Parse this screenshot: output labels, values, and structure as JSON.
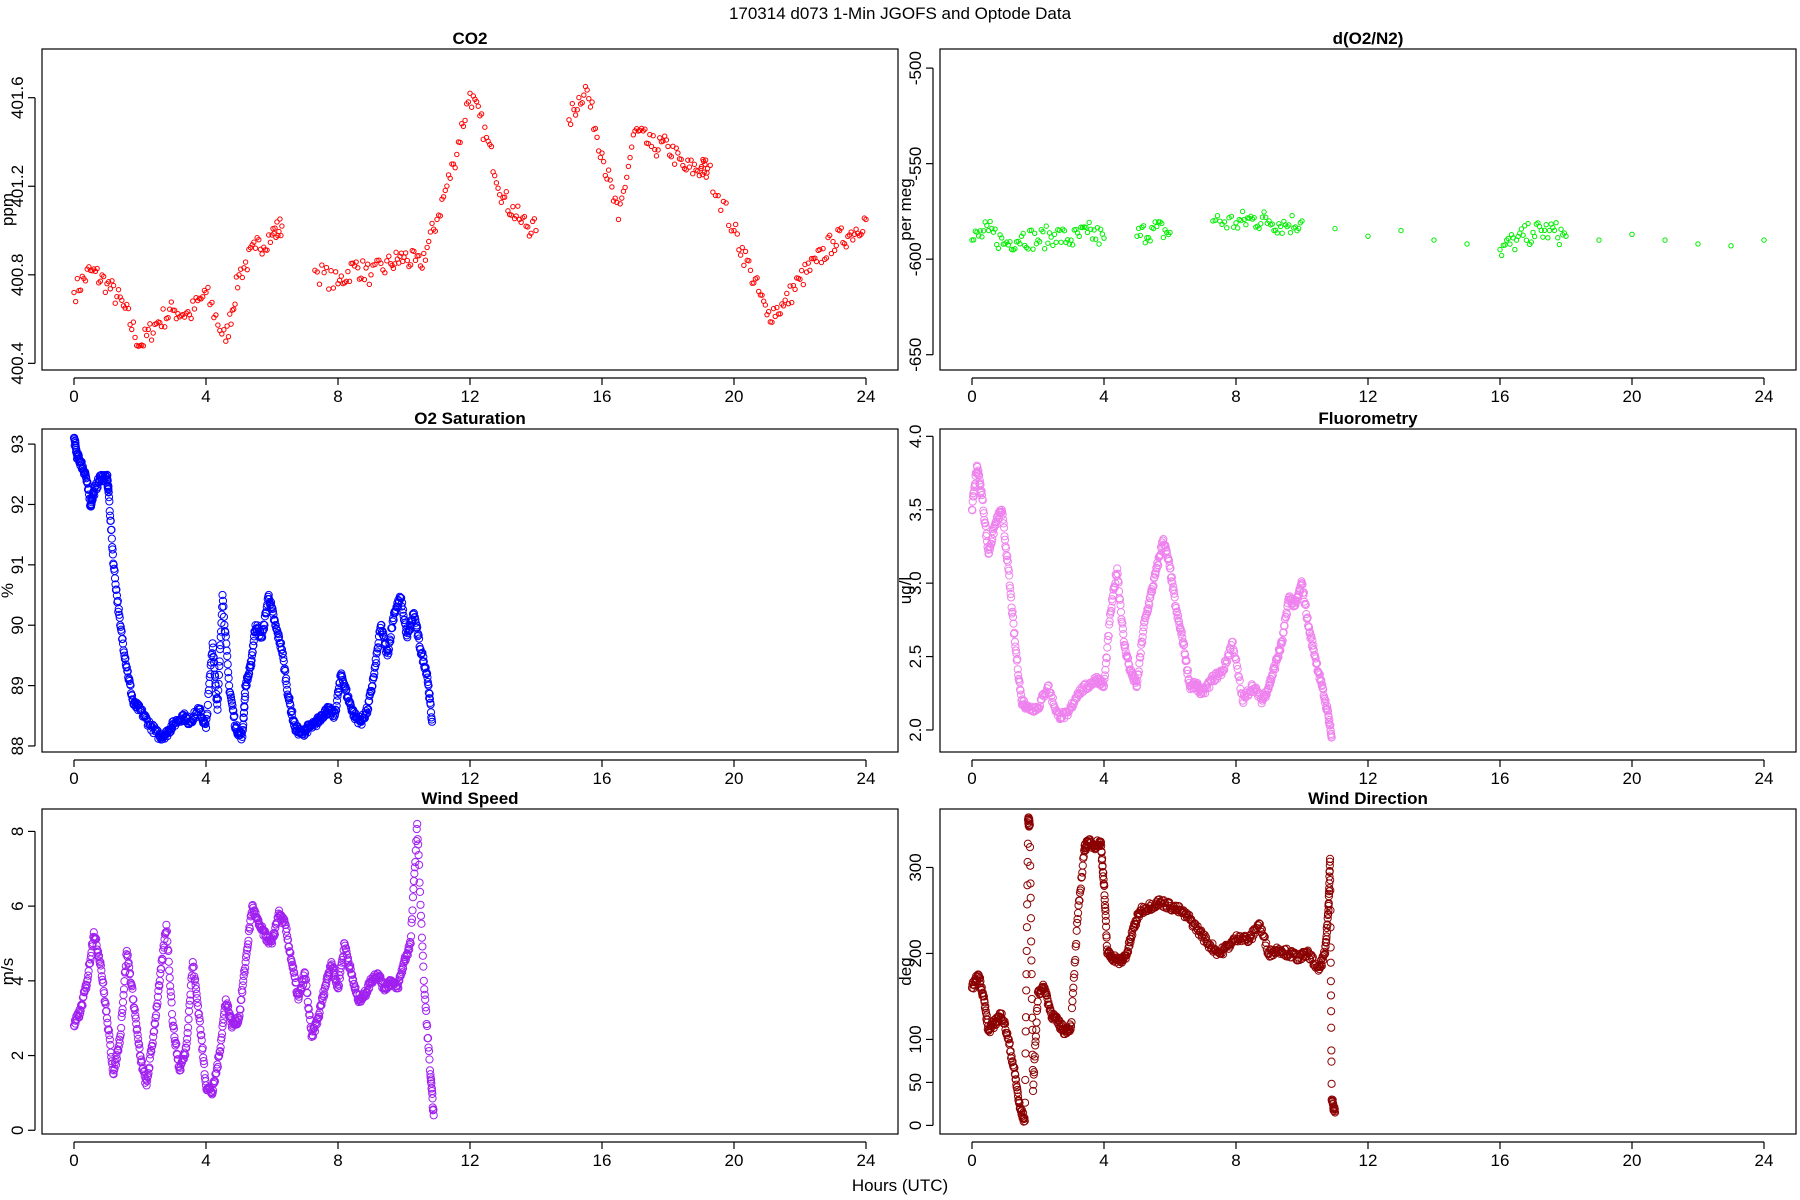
{
  "title": "170314   d073   1-Min  JGOFS and Optode Data",
  "xlabel": "Hours (UTC)",
  "chart_data": [
    {
      "id": "co2",
      "type": "scatter",
      "title": "CO2",
      "ylabel": "ppm",
      "color": "#ff0000",
      "marker_size": "small",
      "xlim": [
        0,
        24
      ],
      "ylim": [
        400.37,
        401.82
      ],
      "xticks": [
        0,
        4,
        8,
        12,
        16,
        20,
        24
      ],
      "xtick_labels": [
        "0",
        "4",
        "8",
        "12",
        "16",
        "20",
        "24"
      ],
      "yticks": [
        400.4,
        400.8,
        401.2,
        401.6
      ],
      "ytick_labels": [
        "400.4",
        "400.8",
        "401.2",
        "401.6"
      ],
      "series": [
        {
          "name": "CO2",
          "x": [
            0.0,
            0.5,
            1.0,
            1.5,
            2.0,
            2.5,
            3.0,
            3.5,
            4.0,
            4.6,
            5.0,
            5.5,
            6.0,
            6.3,
            7.3,
            8.0,
            8.5,
            9.0,
            9.6,
            10.0,
            10.5,
            11.0,
            11.5,
            12.0,
            12.5,
            13.0,
            13.5,
            14.0,
            15.0,
            15.5,
            16.0,
            16.5,
            17.0,
            17.5,
            18.0,
            18.5,
            19.0,
            19.2,
            20.0,
            20.5,
            21.0,
            21.5,
            22.0,
            22.5,
            23.0,
            23.5,
            24.0
          ],
          "y": [
            400.72,
            400.82,
            400.76,
            400.66,
            400.48,
            400.58,
            400.64,
            400.62,
            400.72,
            400.5,
            400.8,
            400.92,
            400.98,
            401.02,
            400.82,
            400.76,
            400.84,
            400.8,
            400.85,
            400.88,
            400.84,
            401.05,
            401.3,
            401.62,
            401.42,
            401.15,
            401.05,
            401.0,
            401.5,
            401.65,
            401.35,
            401.05,
            401.45,
            401.38,
            401.38,
            401.28,
            401.28,
            401.28,
            401.0,
            400.82,
            400.62,
            400.66,
            400.78,
            400.86,
            400.95,
            400.98,
            401.05
          ]
        }
      ]
    },
    {
      "id": "o2n2",
      "type": "scatter",
      "title": "d(O2/N2)",
      "ylabel": "per meg",
      "color": "#00ee00",
      "marker_size": "small",
      "xlim": [
        0,
        24
      ],
      "ylim": [
        -658,
        -490
      ],
      "xticks": [
        0,
        4,
        8,
        12,
        16,
        20,
        24
      ],
      "xtick_labels": [
        "0",
        "4",
        "8",
        "12",
        "16",
        "20",
        "24"
      ],
      "yticks": [
        -650,
        -600,
        -550,
        -500
      ],
      "ytick_labels": [
        "-650",
        "-600",
        "-550",
        "-500"
      ],
      "series": [
        {
          "name": "d(O2/N2)",
          "x": [
            0.0,
            0.5,
            1.0,
            1.5,
            2.0,
            2.5,
            3.0,
            3.5,
            4.0,
            5.0,
            5.5,
            6.0,
            7.3,
            8.0,
            8.5,
            9.0,
            9.5,
            10.0,
            11.0,
            12.0,
            13.0,
            14.0,
            15.0,
            16.0,
            16.5,
            17.0,
            17.5,
            18.0,
            19.0,
            20.0,
            21.0,
            22.0,
            23.0,
            24.0
          ],
          "y": [
            -590,
            -585,
            -592,
            -588,
            -590,
            -587,
            -590,
            -586,
            -589,
            -588,
            -584,
            -586,
            -580,
            -581,
            -579,
            -580,
            -582,
            -580,
            -584,
            -588,
            -585,
            -590,
            -592,
            -595,
            -590,
            -586,
            -585,
            -588,
            -590,
            -587,
            -590,
            -592,
            -593,
            -590
          ]
        }
      ]
    },
    {
      "id": "o2sat",
      "type": "scatter",
      "title": "O2 Saturation",
      "ylabel": "%",
      "color": "#0000ff",
      "marker_size": "large",
      "xlim": [
        0,
        24
      ],
      "ylim": [
        87.9,
        93.25
      ],
      "xticks": [
        0,
        4,
        8,
        12,
        16,
        20,
        24
      ],
      "xtick_labels": [
        "0",
        "4",
        "8",
        "12",
        "16",
        "20",
        "24"
      ],
      "yticks": [
        88,
        89,
        90,
        91,
        92,
        93
      ],
      "ytick_labels": [
        "88",
        "89",
        "90",
        "91",
        "92",
        "93"
      ],
      "series": [
        {
          "name": "O2 Saturation",
          "x": [
            0.0,
            0.1,
            0.2,
            0.35,
            0.5,
            0.6,
            0.8,
            1.0,
            1.05,
            1.2,
            1.4,
            1.6,
            1.8,
            2.0,
            2.3,
            2.6,
            2.8,
            3.0,
            3.3,
            3.5,
            3.8,
            4.0,
            4.2,
            4.35,
            4.5,
            4.7,
            4.9,
            5.1,
            5.2,
            5.35,
            5.5,
            5.7,
            5.9,
            6.1,
            6.3,
            6.5,
            6.7,
            6.9,
            7.1,
            7.3,
            7.5,
            7.7,
            7.9,
            8.1,
            8.3,
            8.5,
            8.7,
            8.9,
            9.1,
            9.3,
            9.5,
            9.7,
            9.9,
            10.1,
            10.3,
            10.5,
            10.7,
            10.85
          ],
          "y": [
            93.1,
            92.8,
            92.7,
            92.5,
            92.0,
            92.2,
            92.45,
            92.45,
            92.2,
            91.0,
            90.0,
            89.3,
            88.7,
            88.6,
            88.35,
            88.15,
            88.2,
            88.35,
            88.5,
            88.4,
            88.6,
            88.3,
            89.7,
            88.6,
            90.5,
            89.0,
            88.3,
            88.15,
            89.0,
            89.3,
            90.0,
            89.8,
            90.5,
            90.0,
            89.6,
            88.8,
            88.3,
            88.2,
            88.3,
            88.35,
            88.5,
            88.6,
            88.5,
            89.2,
            88.8,
            88.5,
            88.4,
            88.6,
            89.2,
            90.0,
            89.5,
            90.2,
            90.45,
            89.8,
            90.2,
            89.6,
            89.2,
            88.4
          ]
        }
      ]
    },
    {
      "id": "fluor",
      "type": "scatter",
      "title": "Fluorometry",
      "ylabel": "ug/l",
      "color": "#ee82ee",
      "marker_size": "large",
      "xlim": [
        0,
        24
      ],
      "ylim": [
        1.85,
        4.05
      ],
      "xticks": [
        0,
        4,
        8,
        12,
        16,
        20,
        24
      ],
      "xtick_labels": [
        "0",
        "4",
        "8",
        "12",
        "16",
        "20",
        "24"
      ],
      "yticks": [
        2.0,
        2.5,
        3.0,
        3.5,
        4.0
      ],
      "ytick_labels": [
        "2.0",
        "2.5",
        "3.0",
        "3.5",
        "4.0"
      ],
      "series": [
        {
          "name": "Fluorometry",
          "x": [
            0.0,
            0.15,
            0.3,
            0.5,
            0.7,
            0.9,
            1.1,
            1.3,
            1.5,
            1.7,
            2.0,
            2.3,
            2.6,
            2.9,
            3.2,
            3.5,
            3.8,
            4.0,
            4.2,
            4.4,
            4.6,
            4.8,
            5.0,
            5.2,
            5.4,
            5.6,
            5.8,
            6.0,
            6.2,
            6.4,
            6.6,
            6.8,
            7.0,
            7.3,
            7.6,
            7.9,
            8.2,
            8.5,
            8.8,
            9.0,
            9.2,
            9.4,
            9.6,
            9.8,
            10.0,
            10.2,
            10.4,
            10.6,
            10.8,
            10.9
          ],
          "y": [
            3.5,
            3.8,
            3.6,
            3.2,
            3.4,
            3.5,
            3.1,
            2.6,
            2.2,
            2.15,
            2.15,
            2.3,
            2.1,
            2.1,
            2.25,
            2.3,
            2.35,
            2.3,
            2.8,
            3.1,
            2.6,
            2.4,
            2.3,
            2.7,
            2.9,
            3.1,
            3.3,
            3.1,
            2.8,
            2.6,
            2.3,
            2.3,
            2.25,
            2.35,
            2.4,
            2.6,
            2.2,
            2.3,
            2.2,
            2.3,
            2.45,
            2.6,
            2.9,
            2.85,
            3.0,
            2.7,
            2.5,
            2.3,
            2.1,
            1.95
          ]
        }
      ]
    },
    {
      "id": "wspd",
      "type": "scatter",
      "title": "Wind Speed",
      "ylabel": "m/s",
      "color": "#a020f0",
      "marker_size": "large",
      "xlim": [
        0,
        24
      ],
      "ylim": [
        -0.1,
        8.6
      ],
      "xticks": [
        0,
        4,
        8,
        12,
        16,
        20,
        24
      ],
      "xtick_labels": [
        "0",
        "4",
        "8",
        "12",
        "16",
        "20",
        "24"
      ],
      "yticks": [
        0,
        2,
        4,
        6,
        8
      ],
      "ytick_labels": [
        "0",
        "2",
        "4",
        "6",
        "8"
      ],
      "series": [
        {
          "name": "Wind Speed",
          "x": [
            0.0,
            0.2,
            0.4,
            0.6,
            0.8,
            1.0,
            1.2,
            1.4,
            1.6,
            1.8,
            2.0,
            2.2,
            2.4,
            2.6,
            2.8,
            3.0,
            3.2,
            3.4,
            3.6,
            3.8,
            4.0,
            4.2,
            4.4,
            4.6,
            4.8,
            5.0,
            5.2,
            5.4,
            5.6,
            5.8,
            6.0,
            6.2,
            6.4,
            6.6,
            6.8,
            7.0,
            7.2,
            7.4,
            7.6,
            7.8,
            8.0,
            8.2,
            8.4,
            8.6,
            8.8,
            9.0,
            9.2,
            9.4,
            9.6,
            9.8,
            10.0,
            10.2,
            10.4,
            10.6,
            10.8,
            10.9
          ],
          "y": [
            2.8,
            3.2,
            4.0,
            5.3,
            4.5,
            3.0,
            1.5,
            2.5,
            4.8,
            3.5,
            2.0,
            1.2,
            2.5,
            4.0,
            5.5,
            2.8,
            1.6,
            2.2,
            4.5,
            3.0,
            1.2,
            1.0,
            2.0,
            3.5,
            2.8,
            3.0,
            4.5,
            6.0,
            5.5,
            5.2,
            5.0,
            5.8,
            5.5,
            4.5,
            3.5,
            4.2,
            2.5,
            3.0,
            3.8,
            4.5,
            3.8,
            5.0,
            4.2,
            3.5,
            3.6,
            4.0,
            4.2,
            3.8,
            4.0,
            3.8,
            4.5,
            5.0,
            8.2,
            4.0,
            1.5,
            0.4
          ]
        }
      ]
    },
    {
      "id": "wdir",
      "type": "scatter",
      "title": "Wind Direction",
      "ylabel": "deg",
      "color": "#8b0000",
      "marker_size": "large",
      "xlim": [
        0,
        24
      ],
      "ylim": [
        -10,
        368
      ],
      "xticks": [
        0,
        4,
        8,
        12,
        16,
        20,
        24
      ],
      "xtick_labels": [
        "0",
        "4",
        "8",
        "12",
        "16",
        "20",
        "24"
      ],
      "yticks": [
        0,
        50,
        100,
        200,
        300
      ],
      "ytick_labels": [
        "0",
        "50",
        "100",
        "200",
        "300"
      ],
      "series": [
        {
          "name": "Wind Direction",
          "x": [
            0.0,
            0.2,
            0.35,
            0.5,
            0.7,
            0.9,
            1.1,
            1.3,
            1.45,
            1.6,
            1.7,
            1.75,
            1.85,
            2.0,
            2.2,
            2.4,
            2.6,
            2.8,
            3.0,
            3.2,
            3.4,
            3.5,
            3.7,
            3.9,
            4.0,
            4.1,
            4.3,
            4.5,
            4.7,
            4.9,
            5.1,
            5.4,
            5.7,
            6.0,
            6.3,
            6.6,
            6.9,
            7.2,
            7.5,
            7.8,
            8.1,
            8.4,
            8.7,
            9.0,
            9.3,
            9.6,
            9.9,
            10.2,
            10.5,
            10.7,
            10.8,
            10.85,
            10.9,
            11.0
          ],
          "y": [
            160,
            175,
            150,
            110,
            120,
            130,
            100,
            60,
            20,
            5,
            355,
            350,
            40,
            155,
            160,
            130,
            120,
            110,
            115,
            240,
            320,
            330,
            325,
            330,
            280,
            200,
            195,
            190,
            200,
            230,
            250,
            255,
            260,
            255,
            250,
            240,
            225,
            210,
            200,
            210,
            220,
            215,
            235,
            200,
            205,
            200,
            195,
            200,
            180,
            200,
            250,
            310,
            30,
            15
          ]
        }
      ]
    }
  ]
}
